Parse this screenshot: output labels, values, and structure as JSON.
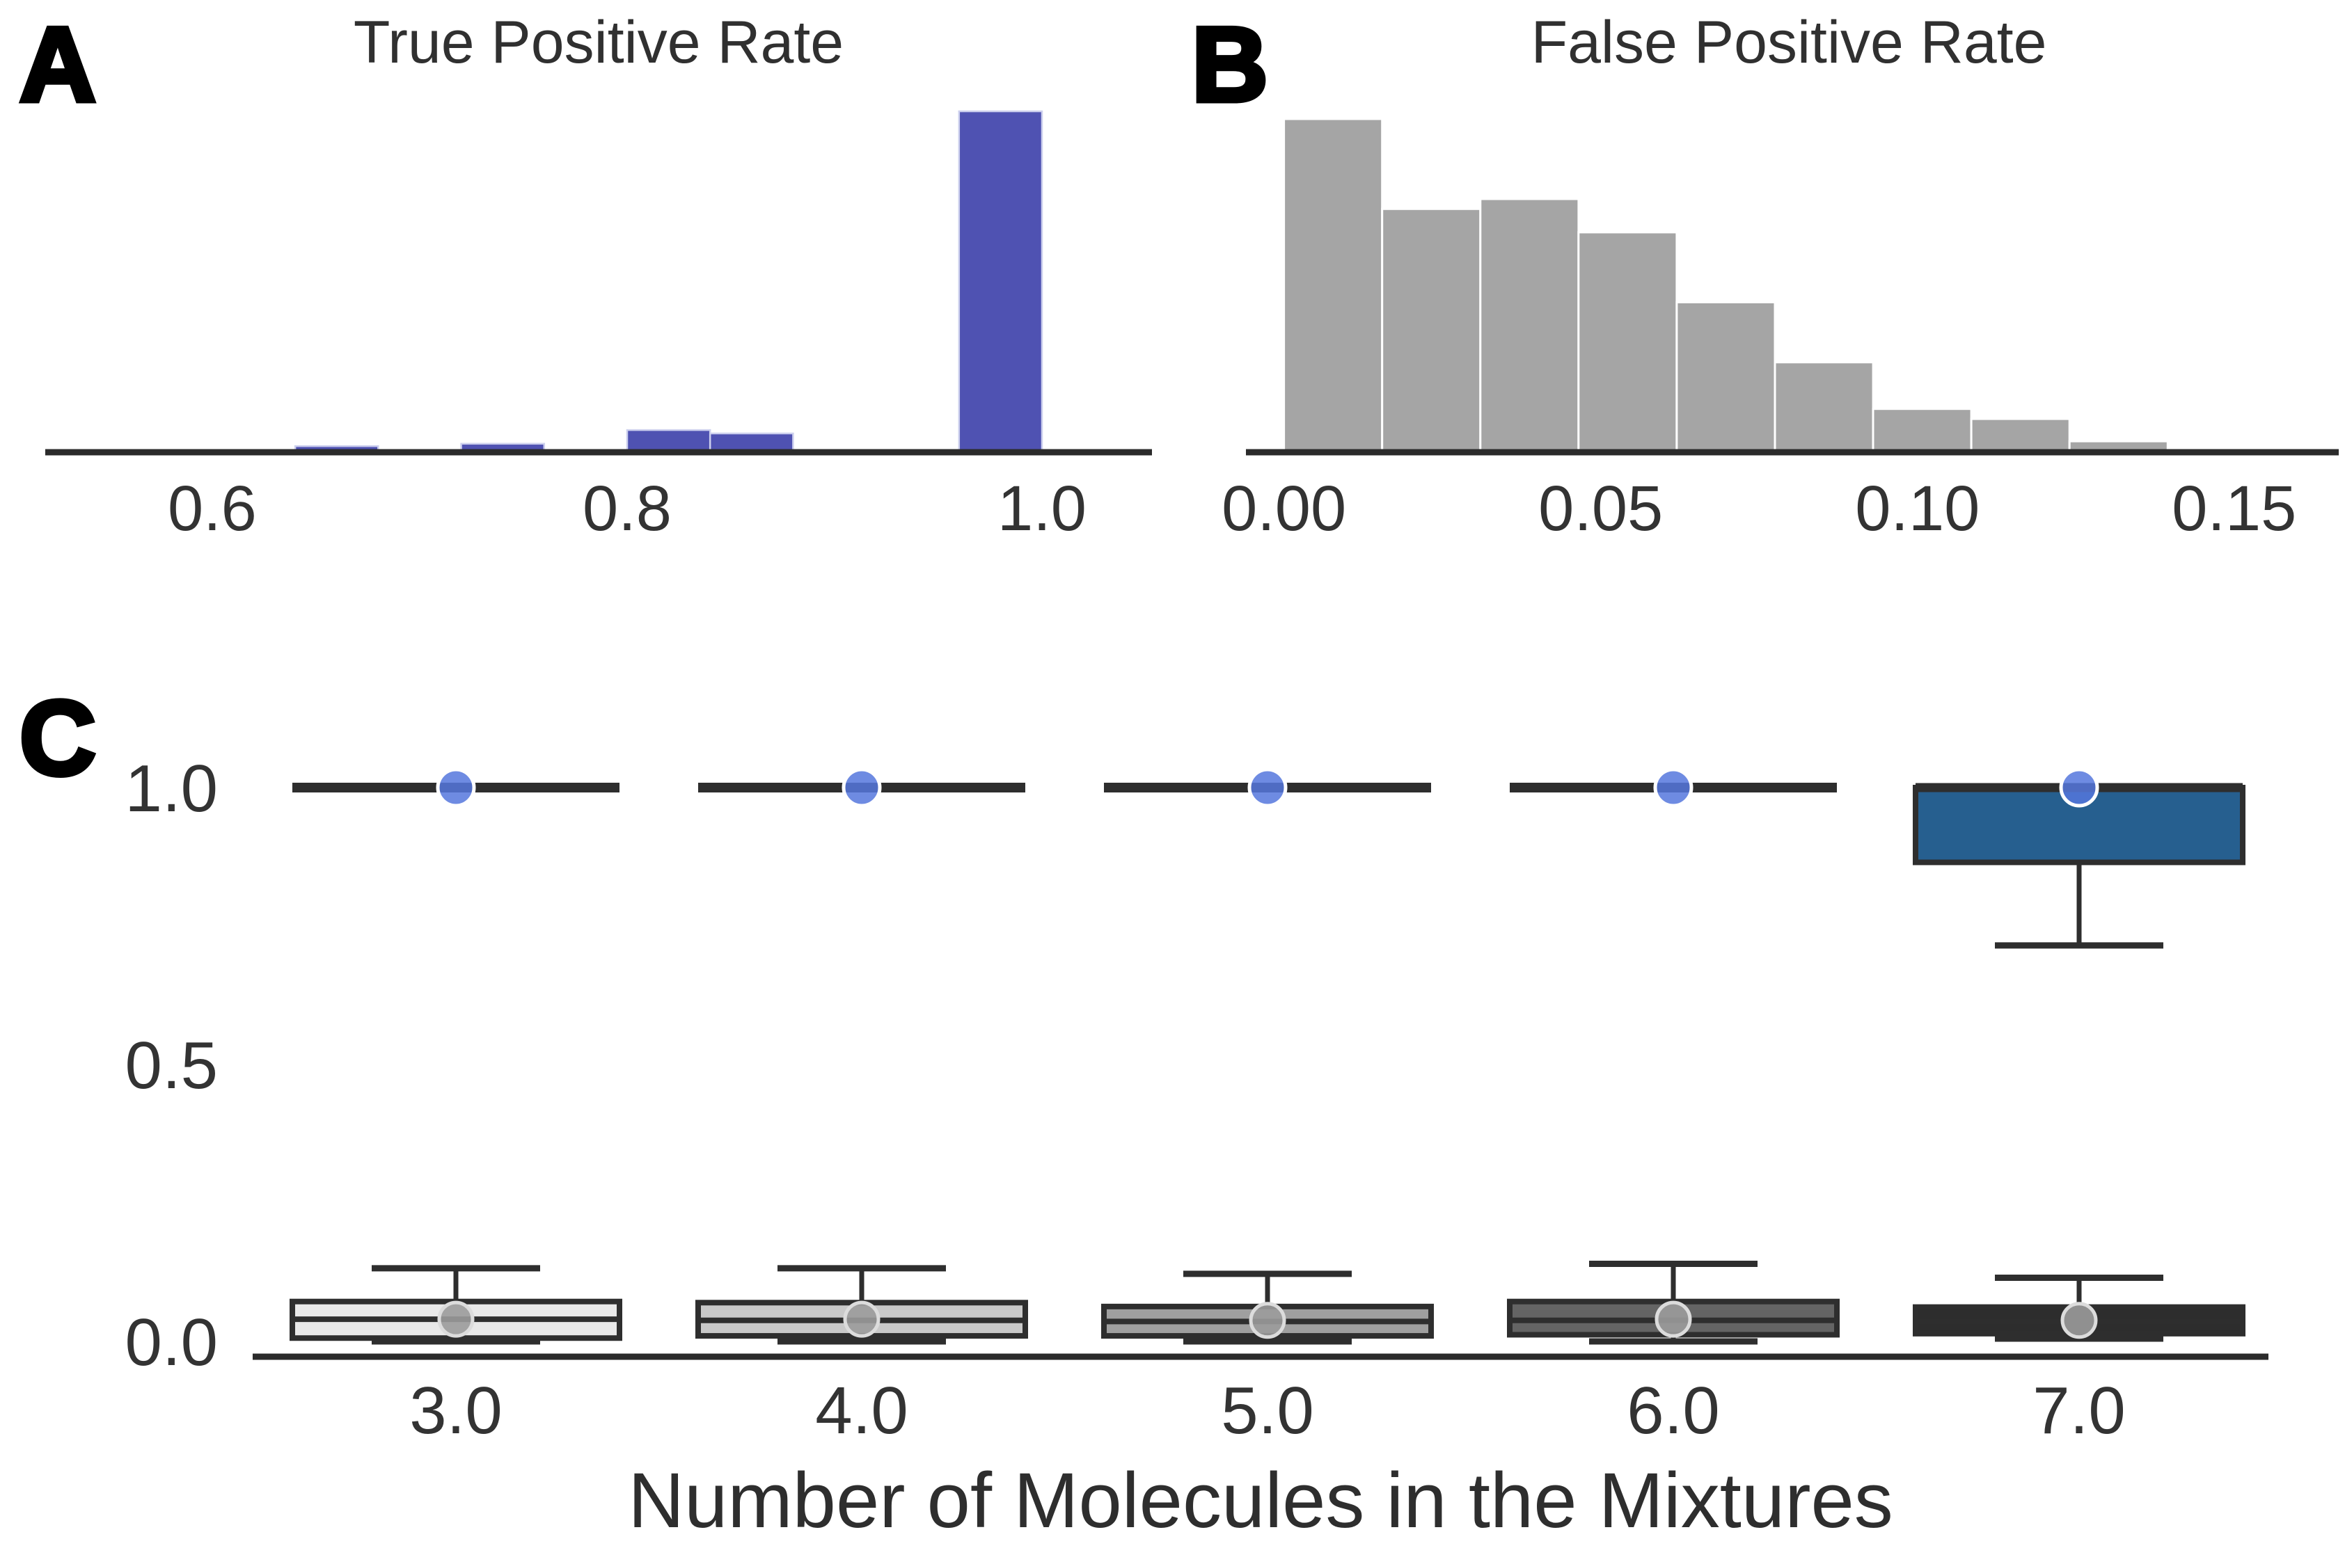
{
  "figure": {
    "background": "#ffffff",
    "panels": {
      "a": {
        "letter": "A",
        "title": "True Positive Rate"
      },
      "b": {
        "letter": "B",
        "title": "False Positive Rate"
      },
      "c": {
        "letter": "C",
        "xlabel": "Number of Molecules in the Mixtures"
      }
    },
    "colors": {
      "tpr_bar": "#4f52b2",
      "tpr_bar_edge": "#cdd0ee",
      "fpr_bar": "#a5a5a5",
      "fpr_bar_edge": "#ffffff",
      "axis": "#2b2b2b",
      "box_stroke": "#2e2e2e",
      "blue_box_fill": "#265f8f",
      "blue_mean_marker": "#5577dd",
      "blue_mean_marker_edge": "#ffffff",
      "gray_mean_marker": "#9b9b9b",
      "gray_mean_marker_edge": "#dcdcdc",
      "gray_box_fills": [
        "#e9e9e9",
        "#c9c9c9",
        "#9f9f9f",
        "#646464",
        "#2d2d2d"
      ],
      "text": "#303030"
    }
  },
  "chart_data": [
    {
      "panel": "A",
      "type": "bar",
      "subtype": "histogram",
      "title": "True Positive Rate",
      "xlim": [
        0.5195,
        1.053
      ],
      "xticks": [
        "0.6",
        "0.8",
        "1.0"
      ],
      "xtick_values": [
        0.6,
        0.8,
        1.0
      ],
      "ylim": [
        0,
        1.05
      ],
      "grid": false,
      "legend": "none",
      "bar_color": "#4f52b2",
      "bins": [
        {
          "x0": 0.64,
          "x1": 0.68,
          "relative_height": 0.018
        },
        {
          "x0": 0.72,
          "x1": 0.76,
          "relative_height": 0.025
        },
        {
          "x0": 0.8,
          "x1": 0.84,
          "relative_height": 0.065
        },
        {
          "x0": 0.84,
          "x1": 0.88,
          "relative_height": 0.055
        },
        {
          "x0": 0.96,
          "x1": 1.0,
          "relative_height": 1.0
        }
      ]
    },
    {
      "panel": "B",
      "type": "bar",
      "subtype": "histogram",
      "title": "False Positive Rate",
      "xlim": [
        -0.006,
        0.1665
      ],
      "xticks": [
        "0.00",
        "0.05",
        "0.10",
        "0.15"
      ],
      "xtick_values": [
        0.0,
        0.05,
        0.1,
        0.15
      ],
      "ylim": [
        0,
        1.05
      ],
      "grid": false,
      "legend": "none",
      "bar_color": "#a5a5a5",
      "bins": [
        {
          "x0": 0.0,
          "x1": 0.0155,
          "relative_height": 1.0
        },
        {
          "x0": 0.0155,
          "x1": 0.031,
          "relative_height": 0.73
        },
        {
          "x0": 0.031,
          "x1": 0.0465,
          "relative_height": 0.76
        },
        {
          "x0": 0.0465,
          "x1": 0.062,
          "relative_height": 0.66
        },
        {
          "x0": 0.062,
          "x1": 0.0775,
          "relative_height": 0.45
        },
        {
          "x0": 0.0775,
          "x1": 0.093,
          "relative_height": 0.27
        },
        {
          "x0": 0.093,
          "x1": 0.1085,
          "relative_height": 0.13
        },
        {
          "x0": 0.1085,
          "x1": 0.124,
          "relative_height": 0.1
        },
        {
          "x0": 0.124,
          "x1": 0.1395,
          "relative_height": 0.033
        },
        {
          "x0": 0.1395,
          "x1": 0.155,
          "relative_height": 0.008
        }
      ]
    },
    {
      "panel": "C",
      "type": "boxplot",
      "xlabel": "Number of Molecules in the Mixtures",
      "categories": [
        "3.0",
        "4.0",
        "5.0",
        "6.0",
        "7.0"
      ],
      "yticks": [
        "0.0",
        "0.5",
        "1.0"
      ],
      "ytick_values": [
        0.0,
        0.5,
        1.0
      ],
      "ylim": [
        -0.03,
        1.12
      ],
      "grid": false,
      "top_row": {
        "mean_marker_color": "#5577dd",
        "boxes": [
          {
            "category": "3.0",
            "whisker_low": 1.0,
            "q1": 1.0,
            "median": 1.0,
            "q3": 1.0,
            "whisker_high": 1.0,
            "mean": 1.0,
            "fill": "none"
          },
          {
            "category": "4.0",
            "whisker_low": 1.0,
            "q1": 1.0,
            "median": 1.0,
            "q3": 1.0,
            "whisker_high": 1.0,
            "mean": 1.0,
            "fill": "none"
          },
          {
            "category": "5.0",
            "whisker_low": 1.0,
            "q1": 1.0,
            "median": 1.0,
            "q3": 1.0,
            "whisker_high": 1.0,
            "mean": 1.0,
            "fill": "none"
          },
          {
            "category": "6.0",
            "whisker_low": 1.0,
            "q1": 1.0,
            "median": 1.0,
            "q3": 1.0,
            "whisker_high": 1.0,
            "mean": 1.0,
            "fill": "none"
          },
          {
            "category": "7.0",
            "whisker_low": 0.715,
            "q1": 0.865,
            "median": 1.0,
            "q3": 1.0,
            "whisker_high": 1.0,
            "mean": 1.0,
            "fill": "#265f8f"
          }
        ]
      },
      "bottom_row": {
        "mean_marker_color": "#9b9b9b",
        "boxes": [
          {
            "category": "3.0",
            "whisker_low": 0.0,
            "q1": 0.006,
            "median": 0.04,
            "q3": 0.072,
            "whisker_high": 0.132,
            "mean": 0.04,
            "fill": "#e9e9e9"
          },
          {
            "category": "4.0",
            "whisker_low": 0.0,
            "q1": 0.01,
            "median": 0.038,
            "q3": 0.07,
            "whisker_high": 0.132,
            "mean": 0.04,
            "fill": "#c9c9c9"
          },
          {
            "category": "5.0",
            "whisker_low": 0.0,
            "q1": 0.01,
            "median": 0.036,
            "q3": 0.063,
            "whisker_high": 0.122,
            "mean": 0.038,
            "fill": "#9f9f9f"
          },
          {
            "category": "6.0",
            "whisker_low": 0.0,
            "q1": 0.012,
            "median": 0.038,
            "q3": 0.072,
            "whisker_high": 0.14,
            "mean": 0.04,
            "fill": "#646464"
          },
          {
            "category": "7.0",
            "whisker_low": 0.005,
            "q1": 0.014,
            "median": 0.036,
            "q3": 0.062,
            "whisker_high": 0.115,
            "mean": 0.038,
            "fill": "#2d2d2d"
          }
        ]
      }
    }
  ]
}
